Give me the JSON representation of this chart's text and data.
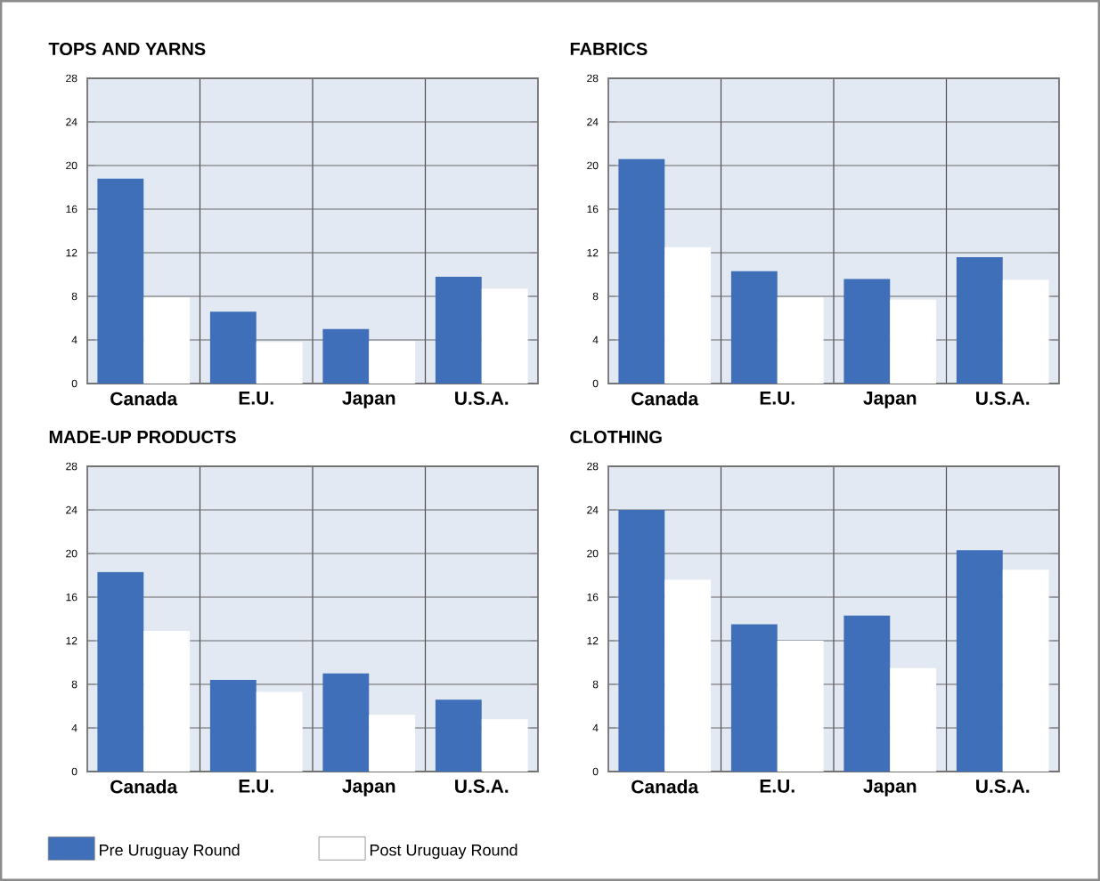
{
  "chart_data": [
    {
      "type": "bar",
      "title": "TOPS AND YARNS",
      "categories": [
        "Canada",
        "E.U.",
        "Japan",
        "U.S.A."
      ],
      "ylim": [
        0,
        28
      ],
      "yticks": [
        0,
        4,
        8,
        12,
        16,
        20,
        24,
        28
      ],
      "grid": true,
      "series": [
        {
          "color": "#3f6fb8",
          "values": [
            18.8,
            6.6,
            5.0,
            9.8
          ]
        },
        {
          "color": "#ffffff",
          "values": [
            7.9,
            3.8,
            3.9,
            8.7
          ]
        }
      ]
    },
    {
      "type": "bar",
      "title": "FABRICS",
      "categories": [
        "Canada",
        "E.U.",
        "Japan",
        "U.S.A."
      ],
      "ylim": [
        0,
        28
      ],
      "yticks": [
        0,
        4,
        8,
        12,
        16,
        20,
        24,
        28
      ],
      "grid": true,
      "series": [
        {
          "color": "#3f6fb8",
          "values": [
            20.6,
            10.3,
            9.6,
            11.6
          ]
        },
        {
          "color": "#ffffff",
          "values": [
            12.5,
            7.9,
            7.7,
            9.5
          ]
        }
      ]
    },
    {
      "type": "bar",
      "title": "MADE-UP PRODUCTS",
      "categories": [
        "Canada",
        "E.U.",
        "Japan",
        "U.S.A."
      ],
      "ylim": [
        0,
        28
      ],
      "yticks": [
        0,
        4,
        8,
        12,
        16,
        20,
        24,
        28
      ],
      "grid": true,
      "legend": "bottom",
      "series": [
        {
          "name": "Pre Uruguay Round",
          "color": "#3f6fb8",
          "values": [
            18.3,
            8.4,
            9.0,
            6.6
          ]
        },
        {
          "name": "Post Uruguay Round",
          "color": "#ffffff",
          "values": [
            12.9,
            7.3,
            5.2,
            4.8
          ]
        }
      ]
    },
    {
      "type": "bar",
      "title": "CLOTHING",
      "categories": [
        "Canada",
        "E.U.",
        "Japan",
        "U.S.A."
      ],
      "ylim": [
        0,
        28
      ],
      "yticks": [
        0,
        4,
        8,
        12,
        16,
        20,
        24,
        28
      ],
      "grid": true,
      "series": [
        {
          "color": "#3f6fb8",
          "values": [
            24.0,
            13.5,
            14.3,
            20.3
          ]
        },
        {
          "color": "#ffffff",
          "values": [
            17.6,
            12.0,
            9.5,
            18.5
          ]
        }
      ]
    }
  ]
}
